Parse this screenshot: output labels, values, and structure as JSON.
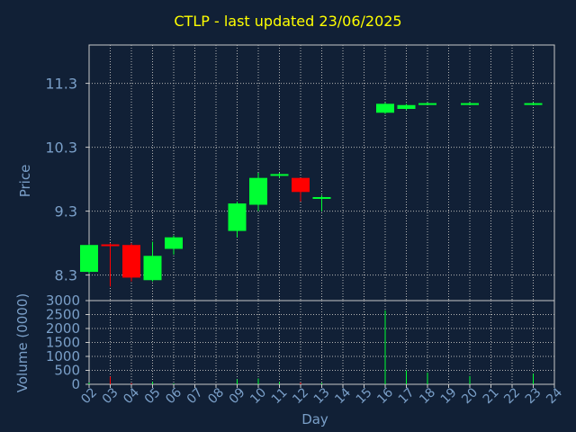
{
  "title": "CTLP - last updated 23/06/2025",
  "chart_data": [
    {
      "type": "candlestick",
      "ylabel": "Price",
      "ylim": [
        7.9,
        11.9
      ],
      "yticks": [
        8.3,
        9.3,
        10.3,
        11.3
      ],
      "ytick_labels": [
        "8.3",
        "9.3",
        "10.3",
        "11.3"
      ],
      "grid": true,
      "colors": {
        "up": "#00ff33",
        "down": "#ff0000"
      },
      "candles": [
        {
          "day": "02",
          "open": 8.35,
          "high": 8.78,
          "low": 8.32,
          "close": 8.77
        },
        {
          "day": "03",
          "open": 8.78,
          "high": 8.8,
          "low": 8.12,
          "close": 8.76
        },
        {
          "day": "04",
          "open": 8.77,
          "high": 8.8,
          "low": 8.2,
          "close": 8.26
        },
        {
          "day": "05",
          "open": 8.22,
          "high": 8.82,
          "low": 8.2,
          "close": 8.6
        },
        {
          "day": "06",
          "open": 8.71,
          "high": 8.92,
          "low": 8.62,
          "close": 8.89
        },
        {
          "day": "09",
          "open": 8.99,
          "high": 9.45,
          "low": 8.89,
          "close": 9.42
        },
        {
          "day": "10",
          "open": 9.4,
          "high": 9.9,
          "low": 9.3,
          "close": 9.82
        },
        {
          "day": "11",
          "open": 9.86,
          "high": 9.9,
          "low": 9.82,
          "close": 9.88
        },
        {
          "day": "12",
          "open": 9.82,
          "high": 9.82,
          "low": 9.45,
          "close": 9.6
        },
        {
          "day": "13",
          "open": 9.5,
          "high": 9.55,
          "low": 9.3,
          "close": 9.52
        },
        {
          "day": "16",
          "open": 10.84,
          "high": 11.0,
          "low": 10.82,
          "close": 10.98
        },
        {
          "day": "17",
          "open": 10.9,
          "high": 10.98,
          "low": 10.88,
          "close": 10.96
        },
        {
          "day": "18",
          "open": 10.97,
          "high": 11.0,
          "low": 10.96,
          "close": 10.99
        },
        {
          "day": "20",
          "open": 10.97,
          "high": 11.0,
          "low": 10.96,
          "close": 10.99
        },
        {
          "day": "23",
          "open": 10.97,
          "high": 11.0,
          "low": 10.96,
          "close": 10.99
        }
      ]
    },
    {
      "type": "bar",
      "ylabel": "Volume (0000)",
      "ylim": [
        0,
        3000
      ],
      "yticks": [
        0,
        500,
        1000,
        1500,
        2000,
        2500,
        3000
      ],
      "ytick_labels": [
        "0",
        "500",
        "1000",
        "1500",
        "2000",
        "2500",
        "3000"
      ],
      "xlabel": "Day",
      "categories": [
        "02",
        "03",
        "04",
        "05",
        "06",
        "07",
        "08",
        "09",
        "10",
        "11",
        "12",
        "13",
        "14",
        "15",
        "16",
        "17",
        "18",
        "19",
        "20",
        "21",
        "22",
        "23",
        "24"
      ],
      "values": [
        60,
        280,
        40,
        90,
        30,
        0,
        0,
        180,
        210,
        80,
        60,
        50,
        0,
        0,
        2650,
        500,
        420,
        0,
        300,
        0,
        0,
        380,
        0
      ],
      "bar_colors": [
        "#00ff33",
        "#ff0000",
        "#ff0000",
        "#00ff33",
        "#00ff33",
        "#00ff33",
        "#00ff33",
        "#00ff33",
        "#00ff33",
        "#00ff33",
        "#ff0000",
        "#00ff33",
        "#00ff33",
        "#00ff33",
        "#00ff33",
        "#00ff33",
        "#00ff33",
        "#00ff33",
        "#00ff33",
        "#00ff33",
        "#00ff33",
        "#00ff33",
        "#00ff33"
      ]
    }
  ]
}
